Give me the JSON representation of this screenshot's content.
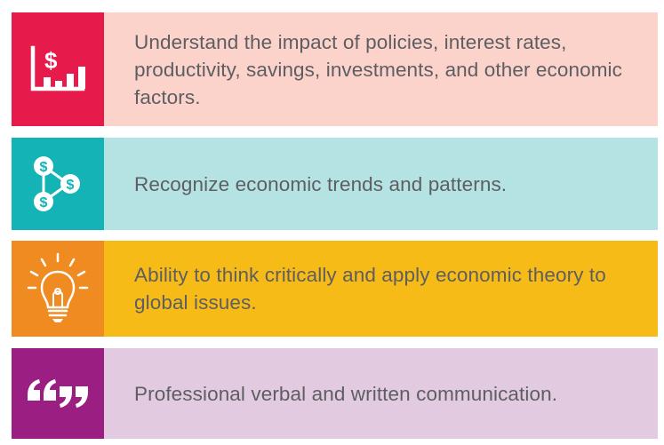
{
  "rows": [
    {
      "icon": "dollar-bar-chart-icon",
      "text": "Understand the impact of policies, interest rates, productivity, savings, investments, and other economic factors.",
      "accent": "#e61b4b",
      "background": "#fbd3ca"
    },
    {
      "icon": "dollar-network-icon",
      "text": "Recognize economic trends and patterns.",
      "accent": "#14b3b5",
      "background": "#b5e3e4"
    },
    {
      "icon": "lightbulb-icon",
      "text": "Ability to think critically and apply economic theory to global issues.",
      "accent": "#f08b22",
      "background": "#f7bb17"
    },
    {
      "icon": "quotation-marks-icon",
      "text": "Professional verbal and written communication.",
      "accent": "#9b1f83",
      "background": "#e2cbe0"
    }
  ]
}
